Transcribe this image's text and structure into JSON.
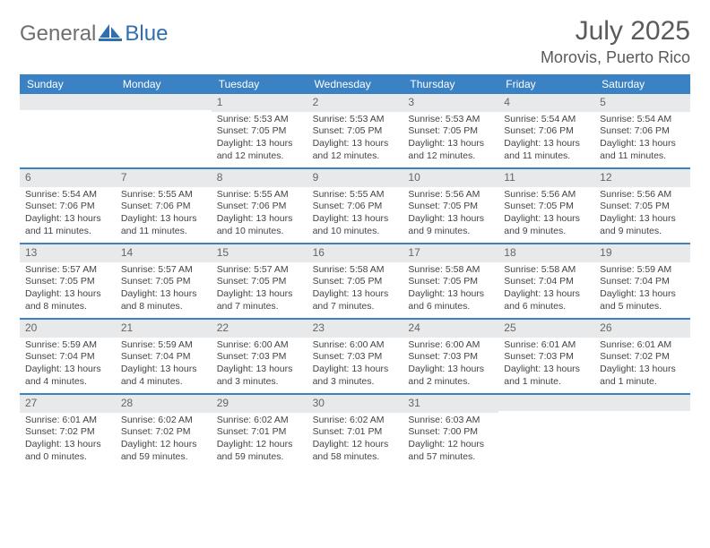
{
  "logo": {
    "general": "General",
    "blue": "Blue"
  },
  "title": "July 2025",
  "location": "Morovis, Puerto Rico",
  "colors": {
    "headerBar": "#3a82c4",
    "dayNumBg": "#e7e9eb",
    "text": "#444444",
    "titleColor": "#5a5a5a"
  },
  "dow": [
    "Sunday",
    "Monday",
    "Tuesday",
    "Wednesday",
    "Thursday",
    "Friday",
    "Saturday"
  ],
  "weeks": [
    [
      null,
      null,
      {
        "n": "1",
        "sr": "5:53 AM",
        "ss": "7:05 PM",
        "dl": "13 hours and 12 minutes."
      },
      {
        "n": "2",
        "sr": "5:53 AM",
        "ss": "7:05 PM",
        "dl": "13 hours and 12 minutes."
      },
      {
        "n": "3",
        "sr": "5:53 AM",
        "ss": "7:05 PM",
        "dl": "13 hours and 12 minutes."
      },
      {
        "n": "4",
        "sr": "5:54 AM",
        "ss": "7:06 PM",
        "dl": "13 hours and 11 minutes."
      },
      {
        "n": "5",
        "sr": "5:54 AM",
        "ss": "7:06 PM",
        "dl": "13 hours and 11 minutes."
      }
    ],
    [
      {
        "n": "6",
        "sr": "5:54 AM",
        "ss": "7:06 PM",
        "dl": "13 hours and 11 minutes."
      },
      {
        "n": "7",
        "sr": "5:55 AM",
        "ss": "7:06 PM",
        "dl": "13 hours and 11 minutes."
      },
      {
        "n": "8",
        "sr": "5:55 AM",
        "ss": "7:06 PM",
        "dl": "13 hours and 10 minutes."
      },
      {
        "n": "9",
        "sr": "5:55 AM",
        "ss": "7:06 PM",
        "dl": "13 hours and 10 minutes."
      },
      {
        "n": "10",
        "sr": "5:56 AM",
        "ss": "7:05 PM",
        "dl": "13 hours and 9 minutes."
      },
      {
        "n": "11",
        "sr": "5:56 AM",
        "ss": "7:05 PM",
        "dl": "13 hours and 9 minutes."
      },
      {
        "n": "12",
        "sr": "5:56 AM",
        "ss": "7:05 PM",
        "dl": "13 hours and 9 minutes."
      }
    ],
    [
      {
        "n": "13",
        "sr": "5:57 AM",
        "ss": "7:05 PM",
        "dl": "13 hours and 8 minutes."
      },
      {
        "n": "14",
        "sr": "5:57 AM",
        "ss": "7:05 PM",
        "dl": "13 hours and 8 minutes."
      },
      {
        "n": "15",
        "sr": "5:57 AM",
        "ss": "7:05 PM",
        "dl": "13 hours and 7 minutes."
      },
      {
        "n": "16",
        "sr": "5:58 AM",
        "ss": "7:05 PM",
        "dl": "13 hours and 7 minutes."
      },
      {
        "n": "17",
        "sr": "5:58 AM",
        "ss": "7:05 PM",
        "dl": "13 hours and 6 minutes."
      },
      {
        "n": "18",
        "sr": "5:58 AM",
        "ss": "7:04 PM",
        "dl": "13 hours and 6 minutes."
      },
      {
        "n": "19",
        "sr": "5:59 AM",
        "ss": "7:04 PM",
        "dl": "13 hours and 5 minutes."
      }
    ],
    [
      {
        "n": "20",
        "sr": "5:59 AM",
        "ss": "7:04 PM",
        "dl": "13 hours and 4 minutes."
      },
      {
        "n": "21",
        "sr": "5:59 AM",
        "ss": "7:04 PM",
        "dl": "13 hours and 4 minutes."
      },
      {
        "n": "22",
        "sr": "6:00 AM",
        "ss": "7:03 PM",
        "dl": "13 hours and 3 minutes."
      },
      {
        "n": "23",
        "sr": "6:00 AM",
        "ss": "7:03 PM",
        "dl": "13 hours and 3 minutes."
      },
      {
        "n": "24",
        "sr": "6:00 AM",
        "ss": "7:03 PM",
        "dl": "13 hours and 2 minutes."
      },
      {
        "n": "25",
        "sr": "6:01 AM",
        "ss": "7:03 PM",
        "dl": "13 hours and 1 minute."
      },
      {
        "n": "26",
        "sr": "6:01 AM",
        "ss": "7:02 PM",
        "dl": "13 hours and 1 minute."
      }
    ],
    [
      {
        "n": "27",
        "sr": "6:01 AM",
        "ss": "7:02 PM",
        "dl": "13 hours and 0 minutes."
      },
      {
        "n": "28",
        "sr": "6:02 AM",
        "ss": "7:02 PM",
        "dl": "12 hours and 59 minutes."
      },
      {
        "n": "29",
        "sr": "6:02 AM",
        "ss": "7:01 PM",
        "dl": "12 hours and 59 minutes."
      },
      {
        "n": "30",
        "sr": "6:02 AM",
        "ss": "7:01 PM",
        "dl": "12 hours and 58 minutes."
      },
      {
        "n": "31",
        "sr": "6:03 AM",
        "ss": "7:00 PM",
        "dl": "12 hours and 57 minutes."
      },
      null,
      null
    ]
  ],
  "labels": {
    "sunrise": "Sunrise: ",
    "sunset": "Sunset: ",
    "daylight": "Daylight: "
  }
}
